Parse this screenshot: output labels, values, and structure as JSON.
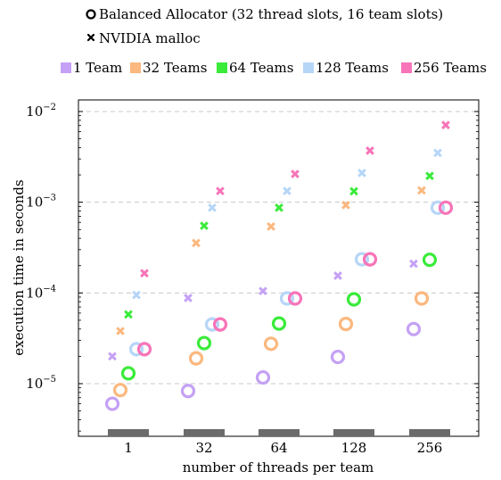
{
  "chart_data": {
    "type": "scatter",
    "title": "",
    "xlabel": "number of threads per team",
    "ylabel": "execution time in seconds",
    "yscale": "log",
    "ylim": [
      3e-06,
      0.013
    ],
    "grid": "horizontal dashed at decades",
    "categories": [
      "1",
      "32",
      "64",
      "128",
      "256"
    ],
    "y_ticks": [
      {
        "value": 1e-05,
        "base": "10",
        "exp": "−5"
      },
      {
        "value": 0.0001,
        "base": "10",
        "exp": "−4"
      },
      {
        "value": 0.001,
        "base": "10",
        "exp": "−3"
      },
      {
        "value": 0.01,
        "base": "10",
        "exp": "−2"
      }
    ],
    "marker_legend": [
      {
        "marker": "circle",
        "label": "Balanced Allocator (32 thread slots, 16 team slots)"
      },
      {
        "marker": "cross",
        "label": "NVIDIA malloc"
      }
    ],
    "legend_placement": "top",
    "series": [
      {
        "name": "1 Team",
        "color": "#c5a1f5",
        "balanced": [
          6e-06,
          8.3e-06,
          1.17e-05,
          1.97e-05,
          4e-05
        ],
        "nvidia_malloc": [
          2e-05,
          8.8e-05,
          0.000105,
          0.000155,
          0.00021
        ]
      },
      {
        "name": "32 Teams",
        "color": "#fbb87f",
        "balanced": [
          8.5e-06,
          1.9e-05,
          2.75e-05,
          4.55e-05,
          8.7e-05
        ],
        "nvidia_malloc": [
          3.8e-05,
          0.000355,
          0.00054,
          0.00093,
          0.00135
        ]
      },
      {
        "name": "64 Teams",
        "color": "#3aeb3a",
        "balanced": [
          1.3e-05,
          2.8e-05,
          4.6e-05,
          8.5e-05,
          0.000232
        ],
        "nvidia_malloc": [
          5.8e-05,
          0.00055,
          0.00087,
          0.00132,
          0.00195
        ]
      },
      {
        "name": "128 Teams",
        "color": "#b6d6f8",
        "balanced": [
          2.4e-05,
          4.5e-05,
          8.7e-05,
          0.000235,
          0.00087
        ],
        "nvidia_malloc": [
          9.5e-05,
          0.00087,
          0.00133,
          0.0021,
          0.0035
        ]
      },
      {
        "name": "256 Teams",
        "color": "#f774b8",
        "balanced": [
          2.4e-05,
          4.5e-05,
          8.7e-05,
          0.000235,
          0.00087
        ],
        "nvidia_malloc": [
          0.000165,
          0.00133,
          0.00205,
          0.0037,
          0.0071
        ]
      }
    ]
  }
}
